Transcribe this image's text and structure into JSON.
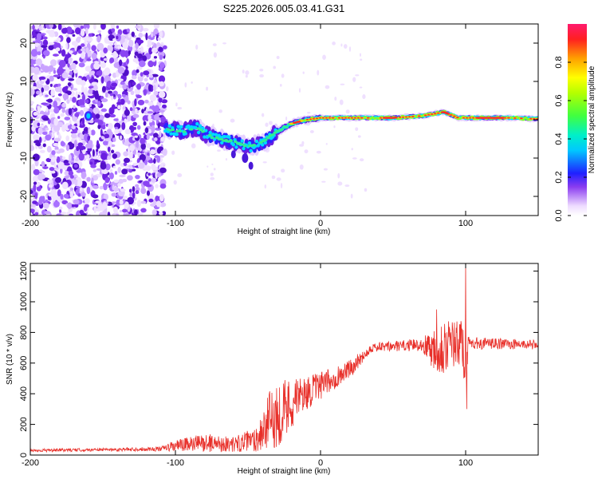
{
  "title": "S225.2026.005.03.41.G31",
  "chart_data": [
    {
      "type": "heatmap",
      "xlabel": "Height of straight line (km)",
      "ylabel": "Frequency (Hz)",
      "xlim": [
        -200,
        150
      ],
      "ylim": [
        -25,
        25
      ],
      "xticks": [
        -200,
        -100,
        0,
        100
      ],
      "yticks": [
        -20,
        -10,
        0,
        10,
        20
      ],
      "colorbar": {
        "label": "Normalized spectral amplitude",
        "range": [
          0,
          1
        ],
        "ticks": [
          0.0,
          0.2,
          0.4,
          0.6,
          0.8
        ]
      },
      "noise_region_x": [
        -200,
        -107
      ],
      "ridge": [
        {
          "x": -107,
          "y": -2.5
        },
        {
          "x": -95,
          "y": -3
        },
        {
          "x": -85,
          "y": -2
        },
        {
          "x": -78,
          "y": -4
        },
        {
          "x": -70,
          "y": -5
        },
        {
          "x": -62,
          "y": -5.5
        },
        {
          "x": -55,
          "y": -6.5
        },
        {
          "x": -48,
          "y": -7
        },
        {
          "x": -40,
          "y": -6
        },
        {
          "x": -33,
          "y": -4
        },
        {
          "x": -27,
          "y": -2.5
        },
        {
          "x": -20,
          "y": -1
        },
        {
          "x": -10,
          "y": 0
        },
        {
          "x": 0,
          "y": 0.5
        },
        {
          "x": 20,
          "y": 0.5
        },
        {
          "x": 50,
          "y": 0.5
        },
        {
          "x": 70,
          "y": 1
        },
        {
          "x": 85,
          "y": 2
        },
        {
          "x": 95,
          "y": 0.5
        },
        {
          "x": 110,
          "y": 0.5
        },
        {
          "x": 130,
          "y": 0.5
        },
        {
          "x": 150,
          "y": 0.2
        }
      ]
    },
    {
      "type": "line",
      "xlabel": "Height of straight line (km)",
      "ylabel": "SNR (10 * v/v)",
      "xlim": [
        -200,
        150
      ],
      "ylim": [
        0,
        1250
      ],
      "xticks": [
        -200,
        -100,
        0,
        100
      ],
      "yticks": [
        0,
        200,
        400,
        600,
        800,
        1000,
        1200
      ],
      "color": "#e8302a",
      "envelope": [
        {
          "x": -200,
          "mean": 30,
          "amp": 10
        },
        {
          "x": -150,
          "mean": 35,
          "amp": 10
        },
        {
          "x": -110,
          "mean": 40,
          "amp": 15
        },
        {
          "x": -100,
          "mean": 60,
          "amp": 40
        },
        {
          "x": -80,
          "mean": 80,
          "amp": 60
        },
        {
          "x": -60,
          "mean": 70,
          "amp": 50
        },
        {
          "x": -45,
          "mean": 100,
          "amp": 80
        },
        {
          "x": -35,
          "mean": 220,
          "amp": 200
        },
        {
          "x": -25,
          "mean": 300,
          "amp": 220
        },
        {
          "x": -15,
          "mean": 380,
          "amp": 120
        },
        {
          "x": 0,
          "mean": 450,
          "amp": 90
        },
        {
          "x": 20,
          "mean": 560,
          "amp": 60
        },
        {
          "x": 35,
          "mean": 700,
          "amp": 30
        },
        {
          "x": 70,
          "mean": 720,
          "amp": 40
        },
        {
          "x": 78,
          "mean": 700,
          "amp": 150
        },
        {
          "x": 85,
          "mean": 720,
          "amp": 200
        },
        {
          "x": 95,
          "mean": 720,
          "amp": 150
        },
        {
          "x": 100,
          "mean": 700,
          "amp": 300
        },
        {
          "x": 102,
          "mean": 730,
          "amp": 40
        },
        {
          "x": 150,
          "mean": 720,
          "amp": 30
        }
      ],
      "peaks": [
        {
          "x": 100,
          "y": 1250
        },
        {
          "x": 100.8,
          "y": 300
        },
        {
          "x": 80,
          "y": 950
        }
      ]
    }
  ]
}
